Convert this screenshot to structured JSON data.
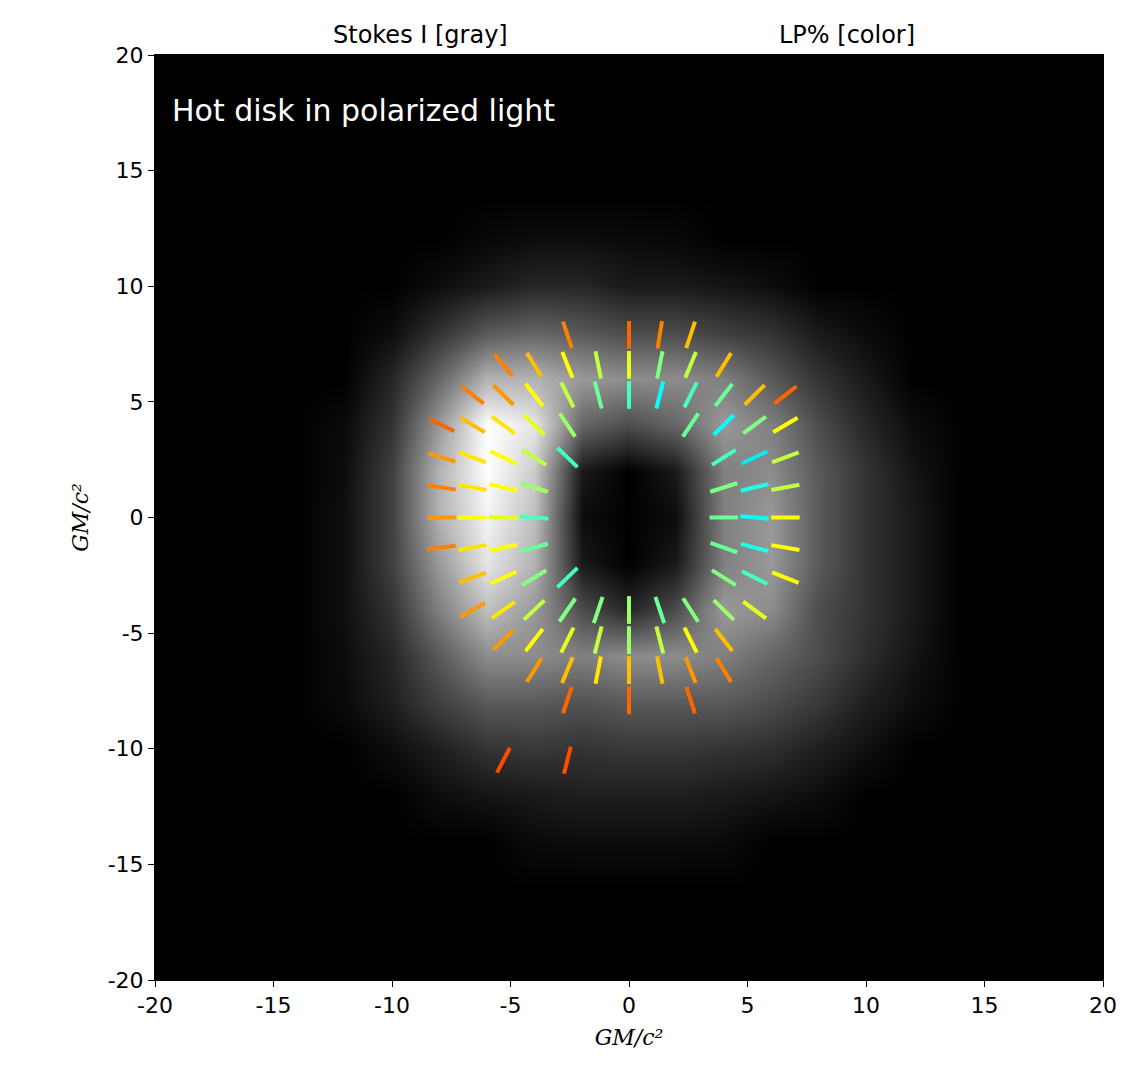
{
  "chart_data": {
    "type": "heatmap",
    "panel_labels": [
      "Stokes I [gray]",
      "LP% [color]"
    ],
    "annotations": [
      "Hot disk in polarized light"
    ],
    "x_label": "GM/c²",
    "y_label": "GM/c²",
    "xlim": [
      -20,
      20
    ],
    "ylim": [
      -20,
      20
    ],
    "xticks": [
      -20,
      -15,
      -10,
      -5,
      0,
      5,
      10,
      15,
      20
    ],
    "yticks": [
      -20,
      -15,
      -10,
      -5,
      0,
      5,
      10,
      15,
      20
    ],
    "tick_labels": true,
    "intensity": {
      "x": [
        -20,
        -18,
        -16,
        -14,
        -12,
        -10,
        -8,
        -6,
        -4,
        -2,
        0,
        2,
        4,
        6,
        8,
        10,
        12,
        14,
        16,
        18,
        20
      ],
      "y": [
        -20,
        -18,
        -16,
        -14,
        -12,
        -10,
        -8,
        -6,
        -4,
        -2,
        0,
        2,
        4,
        6,
        8,
        10,
        12,
        14,
        16,
        18,
        20
      ],
      "z": [
        [
          0,
          0,
          0,
          0,
          0,
          0,
          0,
          0,
          0,
          0,
          0,
          0,
          0,
          0,
          0,
          0,
          0,
          0,
          0,
          0,
          0
        ],
        [
          0,
          0,
          0,
          0,
          0,
          0,
          0,
          0,
          0,
          0,
          0,
          0,
          0,
          0,
          0,
          0,
          0,
          0,
          0,
          0,
          0
        ],
        [
          0,
          0,
          0,
          0,
          0,
          0,
          0,
          0,
          0,
          0,
          0,
          0,
          0,
          0,
          0,
          0,
          0,
          0,
          0,
          0,
          0
        ],
        [
          0,
          0,
          0,
          0,
          0,
          0,
          0,
          0,
          0.04,
          0.05,
          0.05,
          0.05,
          0.04,
          0,
          0,
          0,
          0,
          0,
          0,
          0,
          0
        ],
        [
          0,
          0,
          0,
          0,
          0,
          0,
          0.05,
          0.08,
          0.1,
          0.12,
          0.12,
          0.12,
          0.1,
          0.08,
          0.05,
          0,
          0,
          0,
          0,
          0,
          0
        ],
        [
          0,
          0,
          0,
          0,
          0,
          0.05,
          0.12,
          0.2,
          0.22,
          0.2,
          0.22,
          0.22,
          0.2,
          0.18,
          0.12,
          0.06,
          0,
          0,
          0,
          0,
          0
        ],
        [
          0,
          0,
          0,
          0,
          0.04,
          0.12,
          0.25,
          0.35,
          0.35,
          0.32,
          0.35,
          0.35,
          0.35,
          0.3,
          0.22,
          0.12,
          0.05,
          0,
          0,
          0,
          0
        ],
        [
          0,
          0,
          0,
          0,
          0.05,
          0.15,
          0.35,
          0.55,
          0.55,
          0.5,
          0.55,
          0.55,
          0.5,
          0.4,
          0.3,
          0.18,
          0.08,
          0,
          0,
          0,
          0
        ],
        [
          0,
          0,
          0,
          0,
          0.06,
          0.2,
          0.5,
          0.75,
          0.6,
          0.3,
          0.15,
          0.3,
          0.6,
          0.55,
          0.3,
          0.2,
          0.1,
          0,
          0,
          0,
          0
        ],
        [
          0,
          0,
          0,
          0,
          0.06,
          0.25,
          0.6,
          0.9,
          0.7,
          0.1,
          0,
          0.1,
          0.5,
          0.6,
          0.35,
          0.2,
          0.1,
          0,
          0,
          0,
          0
        ],
        [
          0,
          0,
          0,
          0,
          0.06,
          0.25,
          0.7,
          0.95,
          0.75,
          0.05,
          0,
          0.05,
          0.5,
          0.6,
          0.35,
          0.2,
          0.1,
          0,
          0,
          0,
          0
        ],
        [
          0,
          0,
          0,
          0,
          0.05,
          0.25,
          0.7,
          1,
          0.8,
          0.1,
          0,
          0.1,
          0.5,
          0.55,
          0.35,
          0.2,
          0.08,
          0,
          0,
          0,
          0
        ],
        [
          0,
          0,
          0,
          0,
          0.04,
          0.2,
          0.6,
          1,
          0.9,
          0.4,
          0.3,
          0.4,
          0.6,
          0.5,
          0.3,
          0.15,
          0.05,
          0,
          0,
          0,
          0
        ],
        [
          0,
          0,
          0,
          0,
          0,
          0.15,
          0.4,
          0.7,
          0.7,
          0.6,
          0.55,
          0.55,
          0.5,
          0.35,
          0.2,
          0.1,
          0,
          0,
          0,
          0,
          0
        ],
        [
          0,
          0,
          0,
          0,
          0,
          0.05,
          0.2,
          0.35,
          0.4,
          0.35,
          0.3,
          0.3,
          0.25,
          0.2,
          0.1,
          0.04,
          0,
          0,
          0,
          0,
          0
        ],
        [
          0,
          0,
          0,
          0,
          0,
          0,
          0.05,
          0.1,
          0.15,
          0.15,
          0.1,
          0.1,
          0.08,
          0.05,
          0,
          0,
          0,
          0,
          0,
          0,
          0
        ],
        [
          0,
          0,
          0,
          0,
          0,
          0,
          0,
          0.03,
          0.05,
          0.05,
          0.04,
          0.03,
          0,
          0,
          0,
          0,
          0,
          0,
          0,
          0,
          0
        ],
        [
          0,
          0,
          0,
          0,
          0,
          0,
          0,
          0,
          0,
          0,
          0,
          0,
          0,
          0,
          0,
          0,
          0,
          0,
          0,
          0,
          0
        ],
        [
          0,
          0,
          0,
          0,
          0,
          0,
          0,
          0,
          0,
          0,
          0,
          0,
          0,
          0,
          0,
          0,
          0,
          0,
          0,
          0,
          0
        ],
        [
          0,
          0,
          0,
          0,
          0,
          0,
          0,
          0,
          0,
          0,
          0,
          0,
          0,
          0,
          0,
          0,
          0,
          0,
          0,
          0,
          0
        ],
        [
          0,
          0,
          0,
          0,
          0,
          0,
          0,
          0,
          0,
          0,
          0,
          0,
          0,
          0,
          0,
          0,
          0,
          0,
          0,
          0,
          0
        ]
      ]
    },
    "lp_range": [
      0,
      80
    ],
    "polarization": {
      "x": [
        -2.6,
        0,
        1.3,
        2.6,
        -5.3,
        -4.0,
        -2.6,
        -1.3,
        0,
        1.3,
        2.6,
        4.0,
        -6.6,
        -5.3,
        -4.0,
        -2.6,
        -1.3,
        0,
        1.3,
        2.6,
        4.0,
        5.3,
        6.6,
        -7.9,
        -6.6,
        -5.3,
        -4.0,
        -2.6,
        2.6,
        4.0,
        5.3,
        6.6,
        -7.9,
        -6.6,
        -5.3,
        -4.0,
        -2.6,
        4.0,
        5.3,
        6.6,
        -7.9,
        -6.6,
        -5.3,
        -4.0,
        4.0,
        5.3,
        6.6,
        -7.9,
        -6.6,
        -5.3,
        -4.0,
        4.0,
        5.3,
        6.6,
        -7.9,
        -6.6,
        -5.3,
        -4.0,
        4.0,
        5.3,
        6.6,
        -6.6,
        -5.3,
        -4.0,
        -2.6,
        4.0,
        5.3,
        6.6,
        -6.6,
        -5.3,
        -4.0,
        -2.6,
        -1.3,
        0,
        1.3,
        2.6,
        4.0,
        5.3,
        -5.3,
        -4.0,
        -2.6,
        -1.3,
        0,
        1.3,
        2.6,
        4.0,
        -4.0,
        -2.6,
        -1.3,
        0,
        1.3,
        2.6,
        4.0,
        -2.6,
        0,
        2.6,
        -5.3,
        -2.6
      ],
      "y": [
        7.9,
        7.9,
        7.9,
        7.9,
        6.6,
        6.6,
        6.6,
        6.6,
        6.6,
        6.6,
        6.6,
        6.6,
        5.3,
        5.3,
        5.3,
        5.3,
        5.3,
        5.3,
        5.3,
        5.3,
        5.3,
        5.3,
        5.3,
        4.0,
        4.0,
        4.0,
        4.0,
        4.0,
        4.0,
        4.0,
        4.0,
        4.0,
        2.6,
        2.6,
        2.6,
        2.6,
        2.6,
        2.6,
        2.6,
        2.6,
        1.3,
        1.3,
        1.3,
        1.3,
        1.3,
        1.3,
        1.3,
        0,
        0,
        0,
        0,
        0,
        0,
        0,
        -1.3,
        -1.3,
        -1.3,
        -1.3,
        -1.3,
        -1.3,
        -1.3,
        -2.6,
        -2.6,
        -2.6,
        -2.6,
        -2.6,
        -2.6,
        -2.6,
        -4.0,
        -4.0,
        -4.0,
        -4.0,
        -4.0,
        -4.0,
        -4.0,
        -4.0,
        -4.0,
        -4.0,
        -5.3,
        -5.3,
        -5.3,
        -5.3,
        -5.3,
        -5.3,
        -5.3,
        -5.3,
        -6.6,
        -6.6,
        -6.6,
        -6.6,
        -6.6,
        -6.6,
        -6.6,
        -7.9,
        -7.9,
        -7.9,
        -10.5,
        -10.5
      ],
      "angle": [
        108,
        90,
        81,
        72,
        129,
        121,
        111,
        101,
        90,
        79,
        68,
        59,
        141,
        135,
        127,
        116,
        104,
        90,
        76,
        64,
        53,
        45,
        39,
        153,
        149,
        143,
        135,
        123,
        57,
        45,
        37,
        31,
        162,
        159,
        154,
        147,
        135,
        33,
        26,
        21,
        171,
        169,
        166,
        162,
        18,
        14,
        11,
        0,
        0,
        178,
        175,
        0,
        175,
        0,
        8,
        10,
        12,
        16,
        160,
        165,
        170,
        20,
        25,
        32,
        45,
        147,
        153,
        158,
        30,
        36,
        44,
        56,
        72,
        90,
        108,
        122,
        135,
        143,
        45,
        53,
        64,
        76,
        90,
        104,
        116,
        127,
        59,
        68,
        79,
        90,
        101,
        111,
        121,
        72,
        90,
        108,
        63,
        76
      ],
      "lp": [
        60,
        62,
        60,
        55,
        60,
        55,
        50,
        45,
        48,
        40,
        45,
        55,
        60,
        58,
        50,
        45,
        38,
        35,
        30,
        35,
        38,
        55,
        62,
        62,
        55,
        52,
        48,
        42,
        38,
        30,
        40,
        50,
        58,
        52,
        50,
        45,
        35,
        35,
        28,
        45,
        60,
        52,
        50,
        42,
        40,
        32,
        45,
        58,
        50,
        48,
        35,
        38,
        30,
        50,
        60,
        52,
        50,
        38,
        38,
        32,
        50,
        55,
        50,
        40,
        35,
        40,
        35,
        50,
        58,
        52,
        45,
        40,
        40,
        42,
        38,
        40,
        42,
        48,
        58,
        50,
        48,
        45,
        42,
        45,
        50,
        55,
        58,
        55,
        52,
        55,
        55,
        58,
        60,
        62,
        62,
        62,
        64,
        64
      ]
    }
  }
}
